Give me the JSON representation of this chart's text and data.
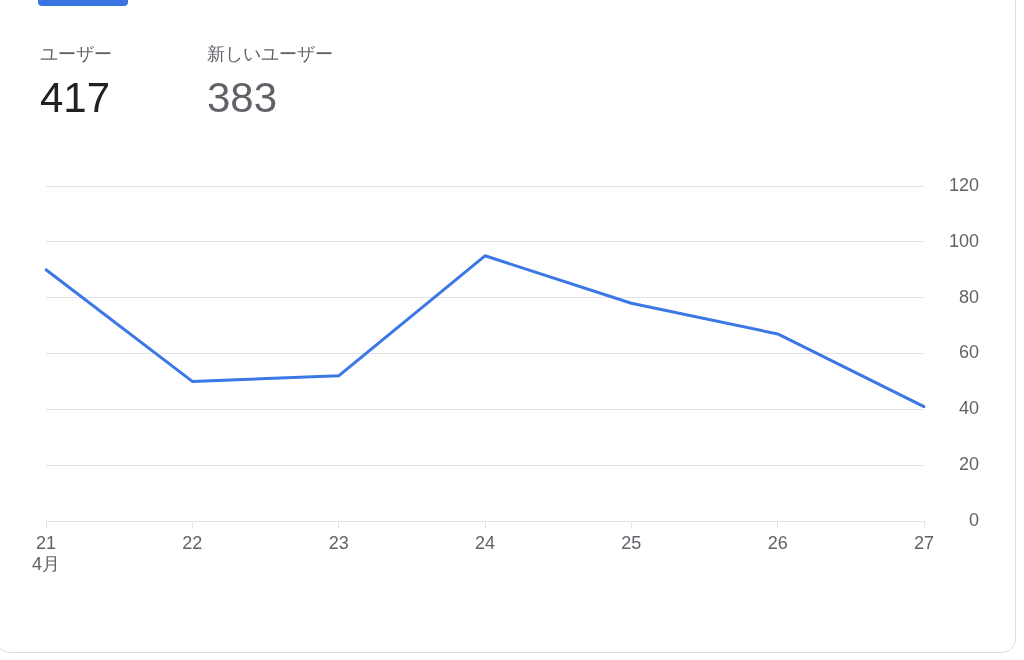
{
  "chart_data": {
    "type": "line",
    "annotations": [
      "ユーザー",
      "417",
      "新しいユーザー",
      "383"
    ],
    "categories": [
      "21\n4月",
      "22",
      "23",
      "24",
      "25",
      "26",
      "27"
    ],
    "values": [
      90,
      50,
      52,
      95,
      78,
      67,
      41
    ],
    "color": "#3b78e6",
    "ylim": [
      0,
      120
    ],
    "yticks": [
      0,
      20,
      40,
      60,
      80,
      100,
      120
    ],
    "grid": "y",
    "marker": "none",
    "line_style": "solid"
  }
}
